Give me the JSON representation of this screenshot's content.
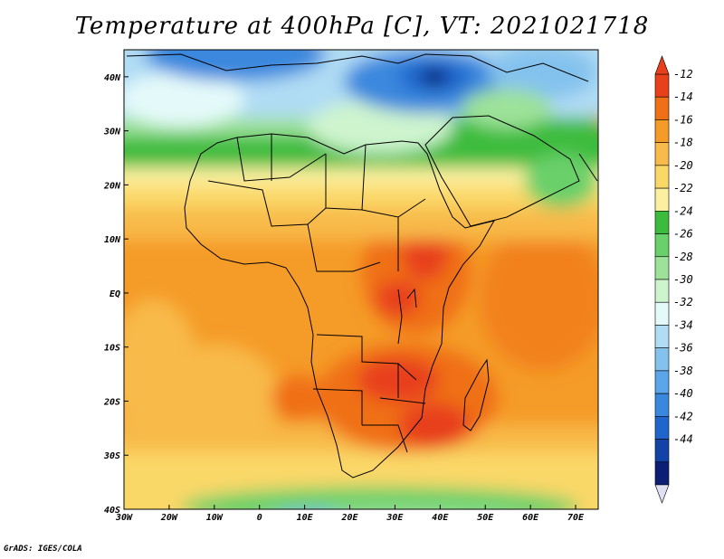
{
  "title": "Temperature at 400hPa [C], VT: 2021021718",
  "footer": "GrADS: IGES/COLA",
  "map": {
    "lon_range": [
      -30,
      75
    ],
    "lat_range": [
      -40,
      45
    ],
    "x_ticks": [
      "30W",
      "20W",
      "10W",
      "0",
      "10E",
      "20E",
      "30E",
      "40E",
      "50E",
      "60E",
      "70E"
    ],
    "y_ticks": [
      "40N",
      "30N",
      "20N",
      "10N",
      "EQ",
      "10S",
      "20S",
      "30S",
      "40S"
    ]
  },
  "colorbar": {
    "labels": [
      "-12",
      "-14",
      "-16",
      "-18",
      "-20",
      "-22",
      "-24",
      "-26",
      "-28",
      "-30",
      "-32",
      "-34",
      "-36",
      "-38",
      "-40",
      "-42",
      "-44"
    ],
    "colors": [
      "#e8401a",
      "#f07018",
      "#f59b28",
      "#f8ba4a",
      "#fad868",
      "#fcf0a0",
      "#3cbc3c",
      "#6ad06a",
      "#9ee29a",
      "#cef4ce",
      "#e4fafa",
      "#b0dcf4",
      "#84c2ee",
      "#5aa6e8",
      "#3a88de",
      "#1f66cc",
      "#1244a8",
      "#0c1f74"
    ],
    "top_color": "#e8401a",
    "bottom_color": "#e0e0f4"
  }
}
